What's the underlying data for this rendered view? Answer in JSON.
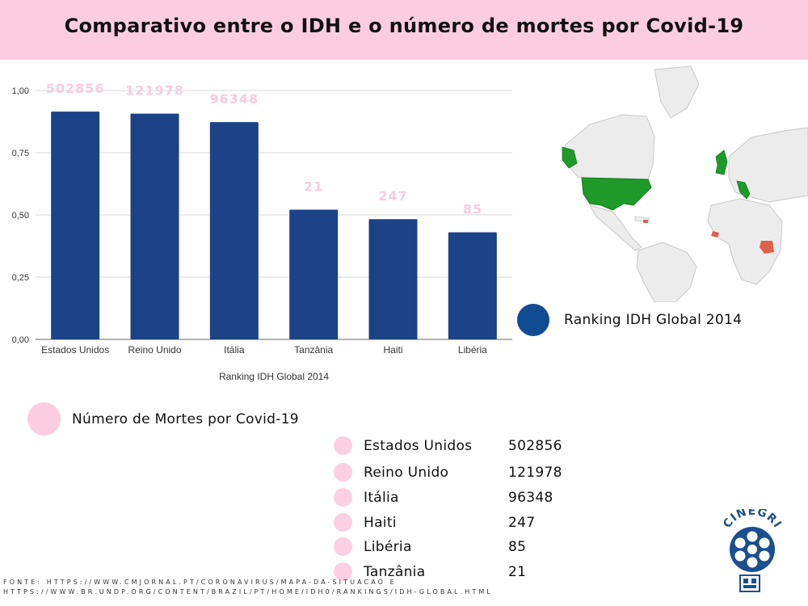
{
  "header": {
    "title": "Comparativo entre o IDH e o número de mortes por Covid-19"
  },
  "chart_data": {
    "type": "bar",
    "categories": [
      "Estados Unidos",
      "Reino Unido",
      "Itália",
      "Tanzânia",
      "Haiti",
      "Libéria"
    ],
    "values": [
      0.915,
      0.907,
      0.873,
      0.521,
      0.483,
      0.43
    ],
    "data_labels": [
      "502856",
      "121978",
      "96348",
      "21",
      "247",
      "85"
    ],
    "xlabel": "Ranking IDH Global 2014",
    "ylabel": "",
    "ylim": [
      0,
      1
    ],
    "yticks": [
      "0,00",
      "0,25",
      "0,50",
      "0,75",
      "1,00"
    ],
    "ytick_values": [
      0,
      0.25,
      0.5,
      0.75,
      1
    ],
    "grid": true,
    "bar_color": "#1c4287",
    "label_color": "#f7cce0"
  },
  "legend_idh": {
    "label": "Ranking IDH Global 2014",
    "color": "#0f4c92"
  },
  "legend_deaths": {
    "label": "Número de Mortes por Covid-19",
    "color": "#fccde0"
  },
  "deaths_list": [
    {
      "country": "Estados Unidos",
      "value": "502856"
    },
    {
      "country": "Reino Unido",
      "value": "121978"
    },
    {
      "country": "Itália",
      "value": "96348"
    },
    {
      "country": "Haiti",
      "value": "247"
    },
    {
      "country": "Libéria",
      "value": "85"
    },
    {
      "country": "Tanzânia",
      "value": "21"
    }
  ],
  "map": {
    "highlight_high_idh": "#1f9a2a",
    "highlight_low_idh": "#e0604a"
  },
  "source": {
    "line1": "FONTE: HTTPS://WWW.CMJORNAL.PT/CORONAVIRUS/MAPA-DA-SITUACAO E",
    "line2": "HTTPS://WWW.BR.UNDP.ORG/CONTENT/BRAZIL/PT/HOME/IDH0/RANKINGS/IDH-GLOBAL.HTML"
  },
  "logo": {
    "text": "CINEGRI"
  }
}
